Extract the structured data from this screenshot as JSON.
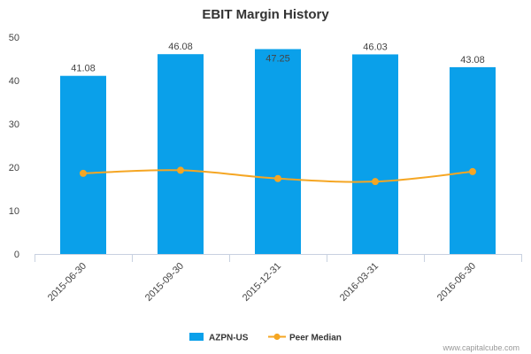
{
  "chart_data": {
    "type": "bar",
    "title": "EBIT Margin History",
    "categories": [
      "2015-06-30",
      "2015-09-30",
      "2015-12-31",
      "2016-03-31",
      "2016-06-30"
    ],
    "series": [
      {
        "name": "AZPN-US",
        "type": "bar",
        "values": [
          41.08,
          46.08,
          47.25,
          46.03,
          43.08
        ],
        "labels": [
          "41.08",
          "46.08",
          "47.25",
          "46.03",
          "43.08"
        ],
        "color": "#0aa0ea"
      },
      {
        "name": "Peer Median",
        "type": "line",
        "values": [
          18.6,
          19.3,
          17.4,
          16.7,
          19.0
        ],
        "color": "#f5a623"
      }
    ],
    "y_ticks": [
      0,
      10,
      20,
      30,
      40,
      50
    ],
    "ylim": [
      0,
      50
    ],
    "xlabel": "",
    "ylabel": "",
    "grid": false,
    "legend_position": "bottom"
  },
  "footer": {
    "watermark": "www.capitalcube.com"
  },
  "colors": {
    "axis": "#c8d1e0",
    "text": "#444444"
  }
}
